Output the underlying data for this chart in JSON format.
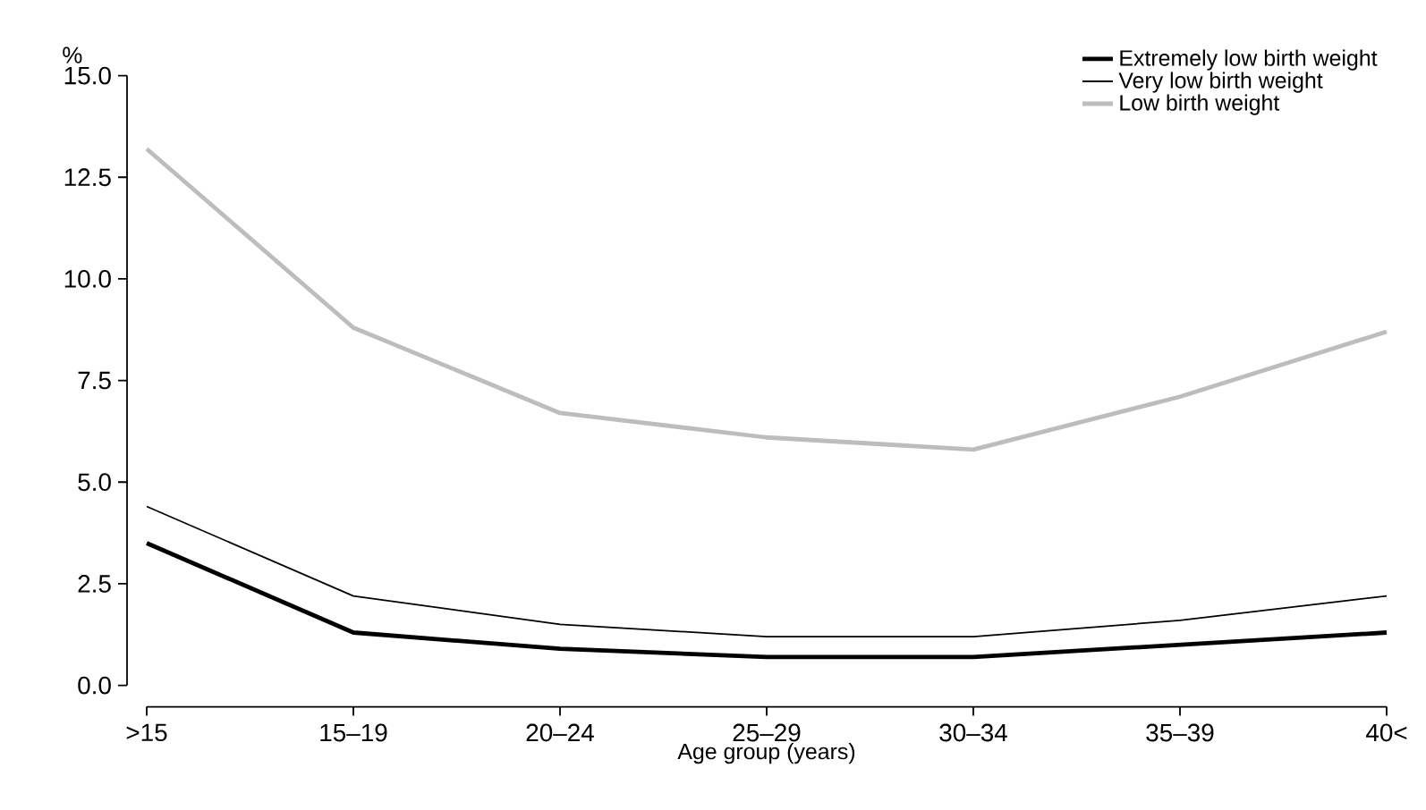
{
  "chart_data": {
    "type": "line",
    "xlabel": "Age group (years)",
    "ylabel": "%",
    "categories": [
      ">15",
      "15–19",
      "20–24",
      "25–29",
      "30–34",
      "35–39",
      "40<"
    ],
    "series": [
      {
        "name": "Extremely low birth weight",
        "color": "#000000",
        "values": [
          3.5,
          1.3,
          0.9,
          0.7,
          0.7,
          1.0,
          1.3
        ]
      },
      {
        "name": "Very low birth weight",
        "color": "#000000",
        "values": [
          4.4,
          2.2,
          1.5,
          1.2,
          1.2,
          1.6,
          2.2
        ]
      },
      {
        "name": "Low birth weight",
        "color": "#bdbdbd",
        "values": [
          13.2,
          8.8,
          6.7,
          6.1,
          5.8,
          7.1,
          8.7
        ]
      }
    ],
    "ylim": [
      0,
      15
    ],
    "yticks": [
      {
        "value": 0,
        "label": "0.0"
      },
      {
        "value": 2.5,
        "label": "2.5"
      },
      {
        "value": 5,
        "label": "5.0"
      },
      {
        "value": 7.5,
        "label": "7.5"
      },
      {
        "value": 10,
        "label": "10.0"
      },
      {
        "value": 12.5,
        "label": "12.5"
      },
      {
        "value": 15,
        "label": "15.0"
      }
    ],
    "legend": "top right",
    "grid": false,
    "marker": "none",
    "line_style": "solid"
  }
}
